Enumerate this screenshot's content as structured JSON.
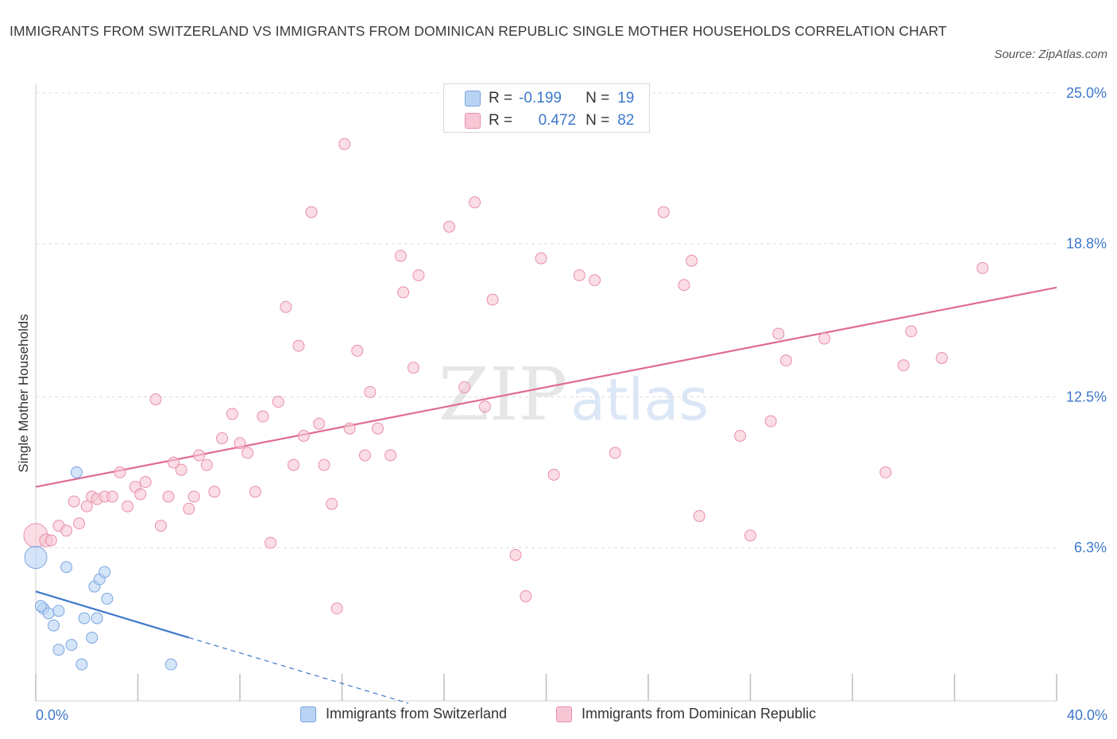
{
  "title": "IMMIGRANTS FROM SWITZERLAND VS IMMIGRANTS FROM DOMINICAN REPUBLIC SINGLE MOTHER HOUSEHOLDS CORRELATION CHART",
  "source": "Source: ZipAtlas.com",
  "watermark": {
    "zip": "ZIP",
    "atlas": "atlas"
  },
  "colors": {
    "blue_fill": "#b9d3f5",
    "blue_stroke": "#7aa6e0",
    "blue_line": "#3d78c9",
    "pink_fill": "#f7c6d4",
    "pink_stroke": "#e98fab",
    "pink_line": "#e06b92",
    "tick_text": "#3d78c9",
    "grid": "#dcdcdc"
  },
  "legend_top": [
    {
      "r_label": "R =",
      "r_value": "-0.199",
      "n_label": "N =",
      "n_value": "19",
      "color": "blue"
    },
    {
      "r_label": "R =",
      "r_value": "0.472",
      "n_label": "N =",
      "n_value": "82",
      "color": "pink"
    }
  ],
  "legend_bottom": [
    {
      "label": "Immigrants from Switzerland",
      "color": "blue"
    },
    {
      "label": "Immigrants from Dominican Republic",
      "color": "pink"
    }
  ],
  "chart_data": {
    "type": "scatter",
    "title": "IMMIGRANTS FROM SWITZERLAND VS IMMIGRANTS FROM DOMINICAN REPUBLIC SINGLE MOTHER HOUSEHOLDS CORRELATION CHART",
    "xlabel": "",
    "ylabel": "Single Mother Households",
    "xlim": [
      0,
      40
    ],
    "ylim": [
      0,
      25
    ],
    "x_tick_labels": [
      "0.0%",
      "40.0%"
    ],
    "y_ticks": [
      {
        "value": 6.3,
        "label": "6.3%"
      },
      {
        "value": 12.5,
        "label": "12.5%"
      },
      {
        "value": 18.8,
        "label": "18.8%"
      },
      {
        "value": 25.0,
        "label": "25.0%"
      }
    ],
    "grid": "horizontal-dashed",
    "legend": "top-center",
    "series": [
      {
        "name": "Immigrants from Switzerland",
        "color": "blue",
        "points": [
          [
            0.0,
            5.9,
            28
          ],
          [
            0.3,
            3.8,
            14
          ],
          [
            0.5,
            3.6,
            14
          ],
          [
            0.7,
            3.1,
            14
          ],
          [
            0.9,
            3.7,
            14
          ],
          [
            1.2,
            5.5,
            14
          ],
          [
            1.6,
            9.4,
            14
          ],
          [
            1.8,
            1.5,
            14
          ],
          [
            0.9,
            2.1,
            14
          ],
          [
            1.4,
            2.3,
            14
          ],
          [
            1.9,
            3.4,
            14
          ],
          [
            2.2,
            2.6,
            14
          ],
          [
            2.4,
            3.4,
            14
          ],
          [
            2.3,
            4.7,
            14
          ],
          [
            2.5,
            5.0,
            14
          ],
          [
            2.7,
            5.3,
            14
          ],
          [
            2.8,
            4.2,
            14
          ],
          [
            5.3,
            1.5,
            14
          ],
          [
            0.2,
            3.9,
            14
          ]
        ],
        "trend": {
          "solid": [
            [
              0,
              4.5
            ],
            [
              6.0,
              2.6
            ]
          ],
          "dashed": [
            [
              6.0,
              2.6
            ],
            [
              14.6,
              -0.1
            ]
          ]
        }
      },
      {
        "name": "Immigrants from Dominican Republic",
        "color": "pink",
        "points": [
          [
            0.0,
            6.8,
            30
          ],
          [
            0.4,
            6.6,
            16
          ],
          [
            0.6,
            6.6,
            14
          ],
          [
            0.9,
            7.2,
            14
          ],
          [
            1.2,
            7.0,
            14
          ],
          [
            1.5,
            8.2,
            14
          ],
          [
            1.7,
            7.3,
            14
          ],
          [
            2.0,
            8.0,
            14
          ],
          [
            2.2,
            8.4,
            14
          ],
          [
            2.4,
            8.3,
            14
          ],
          [
            2.7,
            8.4,
            14
          ],
          [
            3.0,
            8.4,
            14
          ],
          [
            3.3,
            9.4,
            14
          ],
          [
            3.6,
            8.0,
            14
          ],
          [
            3.9,
            8.8,
            14
          ],
          [
            4.1,
            8.5,
            14
          ],
          [
            4.3,
            9.0,
            14
          ],
          [
            4.7,
            12.4,
            14
          ],
          [
            4.9,
            7.2,
            14
          ],
          [
            5.2,
            8.4,
            14
          ],
          [
            5.4,
            9.8,
            14
          ],
          [
            5.7,
            9.5,
            14
          ],
          [
            6.0,
            7.9,
            14
          ],
          [
            6.2,
            8.4,
            14
          ],
          [
            6.4,
            10.1,
            14
          ],
          [
            6.7,
            9.7,
            14
          ],
          [
            7.0,
            8.6,
            14
          ],
          [
            7.3,
            10.8,
            14
          ],
          [
            7.7,
            11.8,
            14
          ],
          [
            8.0,
            10.6,
            14
          ],
          [
            8.3,
            10.2,
            14
          ],
          [
            8.6,
            8.6,
            14
          ],
          [
            8.9,
            11.7,
            14
          ],
          [
            9.2,
            6.5,
            14
          ],
          [
            9.5,
            12.3,
            14
          ],
          [
            9.8,
            16.2,
            14
          ],
          [
            10.1,
            9.7,
            14
          ],
          [
            10.3,
            14.6,
            14
          ],
          [
            10.5,
            10.9,
            14
          ],
          [
            10.8,
            20.1,
            14
          ],
          [
            11.1,
            11.4,
            14
          ],
          [
            11.3,
            9.7,
            14
          ],
          [
            11.6,
            8.1,
            14
          ],
          [
            11.8,
            3.8,
            14
          ],
          [
            12.1,
            22.9,
            14
          ],
          [
            12.3,
            11.2,
            14
          ],
          [
            12.6,
            14.4,
            14
          ],
          [
            12.9,
            10.1,
            14
          ],
          [
            13.1,
            12.7,
            14
          ],
          [
            13.4,
            11.2,
            14
          ],
          [
            13.9,
            10.1,
            14
          ],
          [
            14.3,
            18.3,
            14
          ],
          [
            14.4,
            16.8,
            14
          ],
          [
            14.8,
            13.7,
            14
          ],
          [
            15.0,
            17.5,
            14
          ],
          [
            16.2,
            19.5,
            14
          ],
          [
            16.8,
            12.9,
            14
          ],
          [
            17.2,
            20.5,
            14
          ],
          [
            17.6,
            12.1,
            14
          ],
          [
            17.9,
            16.5,
            14
          ],
          [
            18.8,
            6.0,
            14
          ],
          [
            19.2,
            4.3,
            14
          ],
          [
            19.8,
            18.2,
            14
          ],
          [
            20.3,
            9.3,
            14
          ],
          [
            21.3,
            17.5,
            14
          ],
          [
            21.9,
            17.3,
            14
          ],
          [
            22.7,
            10.2,
            14
          ],
          [
            24.6,
            20.1,
            14
          ],
          [
            25.4,
            17.1,
            14
          ],
          [
            25.7,
            18.1,
            14
          ],
          [
            26.0,
            7.6,
            14
          ],
          [
            27.6,
            10.9,
            14
          ],
          [
            28.0,
            6.8,
            14
          ],
          [
            28.8,
            11.5,
            14
          ],
          [
            29.1,
            15.1,
            14
          ],
          [
            29.4,
            14.0,
            14
          ],
          [
            30.9,
            14.9,
            14
          ],
          [
            33.3,
            9.4,
            14
          ],
          [
            34.0,
            13.8,
            14
          ],
          [
            34.3,
            15.2,
            14
          ],
          [
            35.5,
            14.1,
            14
          ],
          [
            37.1,
            17.8,
            14
          ]
        ],
        "trend": {
          "solid": [
            [
              0,
              8.8
            ],
            [
              40,
              17.0
            ]
          ]
        }
      }
    ]
  }
}
